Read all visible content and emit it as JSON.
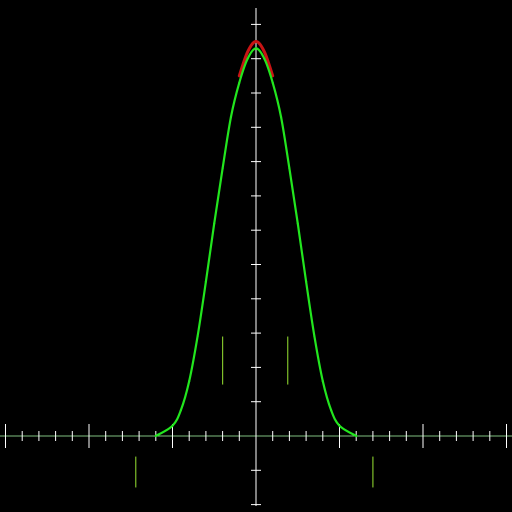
{
  "colors": {
    "background": "#000000",
    "axes": "#ffffff",
    "green_trace": "#22e61e",
    "red_trace": "#c81414",
    "x_axis_line": "#7fbf7f",
    "markers": "#7fbf2a"
  },
  "chart_data": {
    "type": "line",
    "title": "",
    "xlabel": "",
    "ylabel": "",
    "grid": false,
    "legend": "none",
    "xlim": [
      -15,
      15
    ],
    "ylim": [
      -4,
      12.5
    ],
    "x_tick_step": 1,
    "x_major_tick_every": 5,
    "y_tick_step": 1,
    "series": [
      {
        "color": "green",
        "x": [
          -6,
          -5,
          -4.5,
          -4,
          -3.5,
          -3,
          -2.5,
          -2,
          -1.5,
          -1,
          -0.5,
          0,
          0.5,
          1,
          1.5,
          2,
          2.5,
          3,
          3.5,
          4,
          4.5,
          5,
          6
        ],
        "y": [
          0.0,
          0.3,
          0.75,
          1.6,
          2.9,
          4.5,
          6.2,
          7.8,
          9.3,
          10.3,
          11.0,
          11.3,
          11.0,
          10.3,
          9.3,
          7.8,
          6.2,
          4.5,
          2.9,
          1.6,
          0.75,
          0.3,
          0.0
        ]
      },
      {
        "color": "red",
        "x": [
          -1,
          -0.5,
          0,
          0.5,
          1
        ],
        "y": [
          10.5,
          11.2,
          11.5,
          11.2,
          10.5
        ]
      }
    ],
    "markers": [
      {
        "x": -7.2,
        "y0": -1.5,
        "y1": -0.6
      },
      {
        "x": -2.0,
        "y0": 1.5,
        "y1": 2.9
      },
      {
        "x": 1.9,
        "y0": 1.5,
        "y1": 2.9
      },
      {
        "x": 7.0,
        "y0": -1.5,
        "y1": -0.6
      }
    ]
  }
}
